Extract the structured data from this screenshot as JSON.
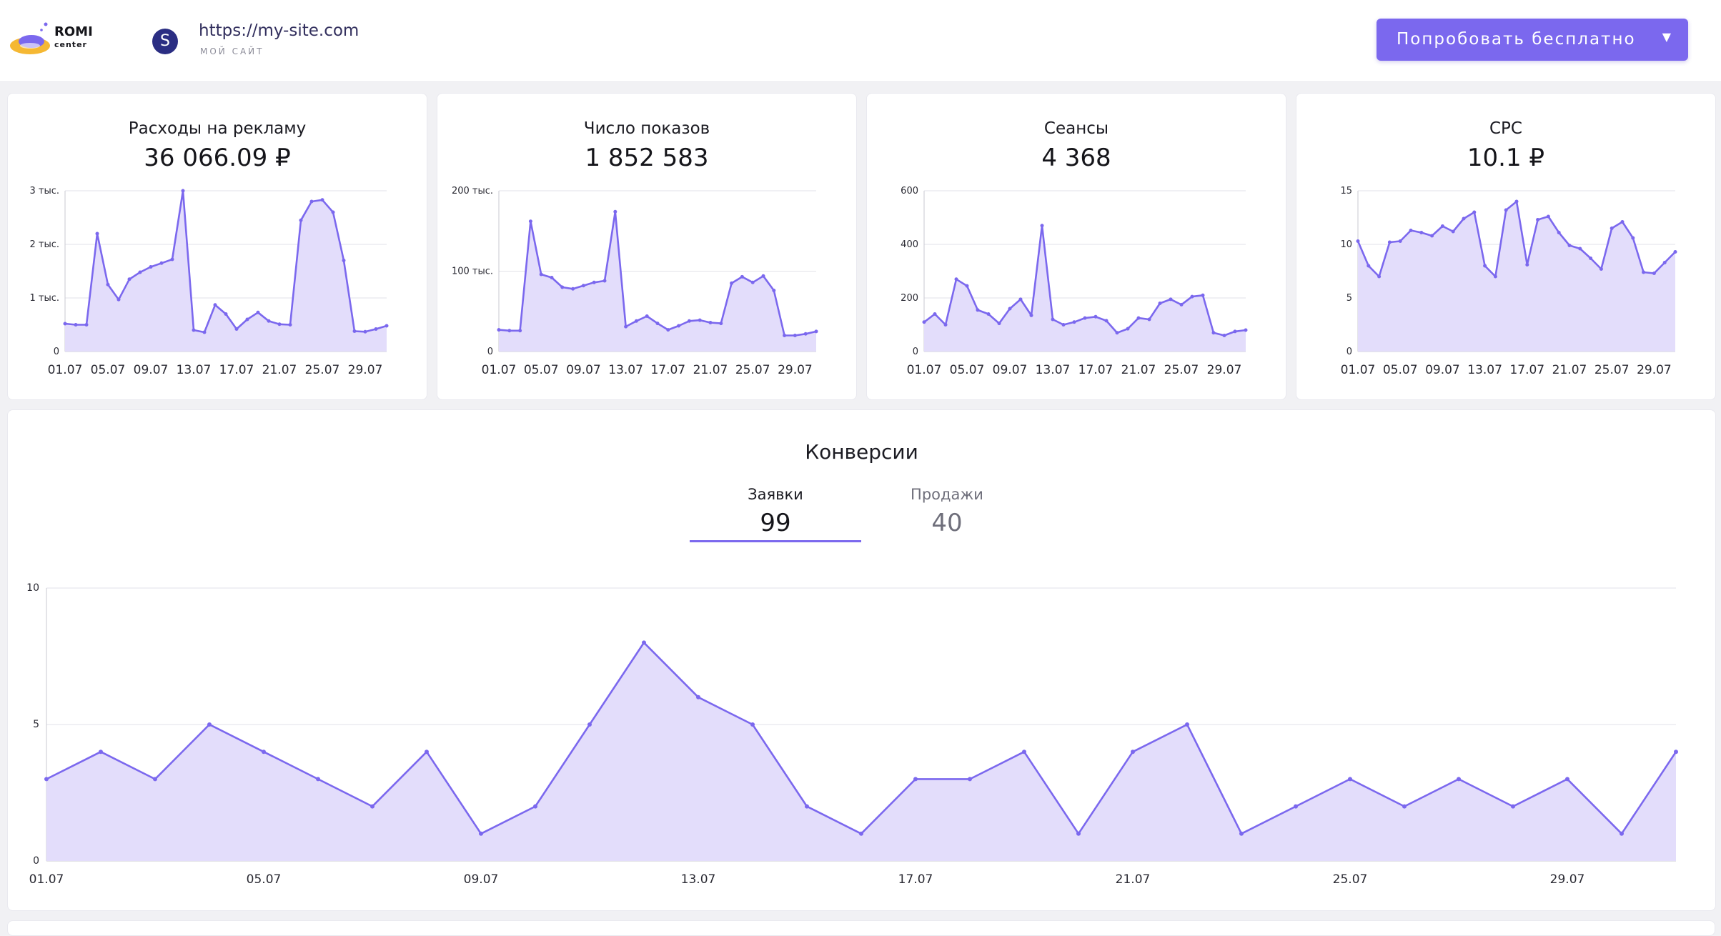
{
  "header": {
    "logo_line1": "ROMI",
    "logo_line2": "center",
    "site_avatar_letter": "S",
    "site_url": "https://my-site.com",
    "site_caption": "МОЙ САЙТ",
    "try_button_label": "Попробовать бесплатно",
    "accent_color": "#7b68ee"
  },
  "date_ticks": [
    "01.07",
    "05.07",
    "09.07",
    "13.07",
    "17.07",
    "21.07",
    "25.07",
    "29.07"
  ],
  "kpis": [
    {
      "title": "Расходы на рекламу",
      "value": "36 066.09 ₽",
      "y_ticks": [
        "0",
        "1 тыс.",
        "2 тыс.",
        "3 тыс."
      ],
      "y_max": 3000,
      "values": [
        520,
        500,
        500,
        2200,
        1250,
        970,
        1350,
        1480,
        1580,
        1650,
        1720,
        3000,
        400,
        360,
        870,
        700,
        420,
        600,
        730,
        570,
        510,
        500,
        2450,
        2800,
        2830,
        2600,
        1700,
        380,
        370,
        420,
        480
      ]
    },
    {
      "title": "Число показов",
      "value": "1 852 583",
      "y_ticks": [
        "0",
        "100 тыс.",
        "200 тыс."
      ],
      "y_max": 200000,
      "values": [
        27000,
        26000,
        26000,
        162000,
        96000,
        92000,
        80000,
        78000,
        82000,
        86000,
        88000,
        174000,
        31000,
        38000,
        44000,
        35000,
        27000,
        32000,
        38000,
        39000,
        36000,
        35000,
        85000,
        93000,
        86000,
        94000,
        76000,
        20000,
        20000,
        22000,
        25000
      ]
    },
    {
      "title": "Сеансы",
      "value": "4 368",
      "y_ticks": [
        "0",
        "200",
        "400",
        "600"
      ],
      "y_max": 600,
      "values": [
        110,
        140,
        100,
        270,
        245,
        155,
        140,
        105,
        160,
        195,
        135,
        470,
        120,
        100,
        110,
        125,
        130,
        115,
        70,
        85,
        125,
        120,
        180,
        195,
        175,
        205,
        210,
        70,
        60,
        75,
        80
      ]
    },
    {
      "title": "CPC",
      "value": "10.1 ₽",
      "y_ticks": [
        "0",
        "5",
        "10",
        "15"
      ],
      "y_max": 15,
      "values": [
        10.3,
        8,
        7,
        10.2,
        10.3,
        11.3,
        11.1,
        10.8,
        11.7,
        11.2,
        12.4,
        13,
        8,
        7,
        13.2,
        14,
        8.1,
        12.3,
        12.6,
        11.1,
        9.9,
        9.6,
        8.7,
        7.7,
        11.5,
        12.1,
        10.6,
        7.4,
        7.3,
        8.3,
        9.3
      ]
    }
  ],
  "conversions": {
    "title": "Конверсии",
    "tabs": [
      {
        "label": "Заявки",
        "value": "99"
      },
      {
        "label": "Продажи",
        "value": "40"
      }
    ],
    "y_ticks": [
      "0",
      "5",
      "10"
    ],
    "y_max": 10,
    "values": [
      3,
      4,
      3,
      5,
      4,
      3,
      2,
      4,
      1,
      2,
      5,
      8,
      6,
      5,
      2,
      1,
      3,
      3,
      4,
      1,
      4,
      5,
      1,
      2,
      3,
      2,
      3,
      2,
      3,
      1,
      4
    ]
  },
  "chart_data": [
    {
      "type": "area",
      "title": "Расходы на рекламу",
      "x": [
        "01.07",
        "02.07",
        "03.07",
        "04.07",
        "05.07",
        "06.07",
        "07.07",
        "08.07",
        "09.07",
        "10.07",
        "11.07",
        "12.07",
        "13.07",
        "14.07",
        "15.07",
        "16.07",
        "17.07",
        "18.07",
        "19.07",
        "20.07",
        "21.07",
        "22.07",
        "23.07",
        "24.07",
        "25.07",
        "26.07",
        "27.07",
        "28.07",
        "29.07",
        "30.07",
        "31.07"
      ],
      "values": [
        520,
        500,
        500,
        2200,
        1250,
        970,
        1350,
        1480,
        1580,
        1650,
        1720,
        3000,
        400,
        360,
        870,
        700,
        420,
        600,
        730,
        570,
        510,
        500,
        2450,
        2800,
        2830,
        2600,
        1700,
        380,
        370,
        420,
        480
      ],
      "ylim": [
        0,
        3000
      ]
    },
    {
      "type": "area",
      "title": "Число показов",
      "values": [
        27000,
        26000,
        26000,
        162000,
        96000,
        92000,
        80000,
        78000,
        82000,
        86000,
        88000,
        174000,
        31000,
        38000,
        44000,
        35000,
        27000,
        32000,
        38000,
        39000,
        36000,
        35000,
        85000,
        93000,
        86000,
        94000,
        76000,
        20000,
        20000,
        22000,
        25000
      ],
      "ylim": [
        0,
        200000
      ]
    },
    {
      "type": "area",
      "title": "Сеансы",
      "values": [
        110,
        140,
        100,
        270,
        245,
        155,
        140,
        105,
        160,
        195,
        135,
        470,
        120,
        100,
        110,
        125,
        130,
        115,
        70,
        85,
        125,
        120,
        180,
        195,
        175,
        205,
        210,
        70,
        60,
        75,
        80
      ],
      "ylim": [
        0,
        600
      ]
    },
    {
      "type": "area",
      "title": "CPC",
      "values": [
        10.3,
        8,
        7,
        10.2,
        10.3,
        11.3,
        11.1,
        10.8,
        11.7,
        11.2,
        12.4,
        13,
        8,
        7,
        13.2,
        14,
        8.1,
        12.3,
        12.6,
        11.1,
        9.9,
        9.6,
        8.7,
        7.7,
        11.5,
        12.1,
        10.6,
        7.4,
        7.3,
        8.3,
        9.3
      ],
      "ylim": [
        0,
        15
      ]
    },
    {
      "type": "area",
      "title": "Конверсии",
      "values": [
        3,
        4,
        3,
        5,
        4,
        3,
        2,
        4,
        1,
        2,
        5,
        8,
        6,
        5,
        2,
        1,
        3,
        3,
        4,
        1,
        4,
        5,
        1,
        2,
        3,
        2,
        3,
        2,
        3,
        1,
        4
      ],
      "ylim": [
        0,
        10
      ]
    }
  ]
}
